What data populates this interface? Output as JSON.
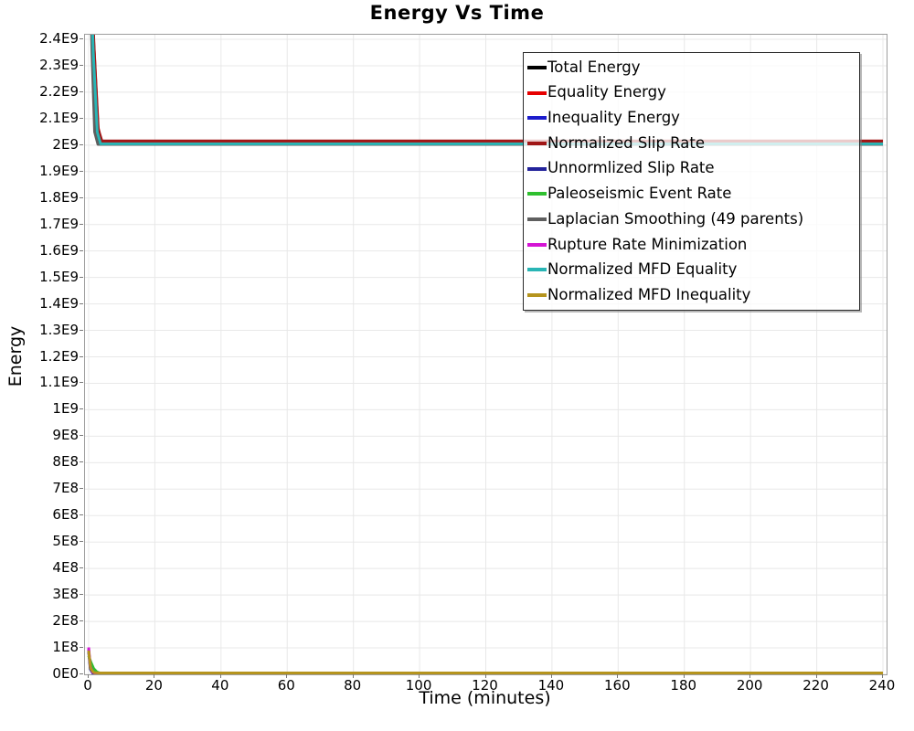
{
  "chart_data": {
    "type": "line",
    "title": "Energy Vs Time",
    "xlabel": "Time (minutes)",
    "ylabel": "Energy",
    "xlim": [
      0,
      240
    ],
    "ylim": [
      0,
      2400000000
    ],
    "grid": true,
    "legend_position": "top-right-inside",
    "xticks": [
      0,
      20,
      40,
      60,
      80,
      100,
      120,
      140,
      160,
      180,
      200,
      220,
      240
    ],
    "yticks": [
      {
        "v": 0,
        "label": "0E0"
      },
      {
        "v": 100000000,
        "label": "1E8"
      },
      {
        "v": 200000000,
        "label": "2E8"
      },
      {
        "v": 300000000,
        "label": "3E8"
      },
      {
        "v": 400000000,
        "label": "4E8"
      },
      {
        "v": 500000000,
        "label": "5E8"
      },
      {
        "v": 600000000,
        "label": "6E8"
      },
      {
        "v": 700000000,
        "label": "7E8"
      },
      {
        "v": 800000000,
        "label": "8E8"
      },
      {
        "v": 900000000,
        "label": "9E8"
      },
      {
        "v": 1000000000,
        "label": "1E9"
      },
      {
        "v": 1100000000,
        "label": "1.1E9"
      },
      {
        "v": 1200000000,
        "label": "1.2E9"
      },
      {
        "v": 1300000000,
        "label": "1.3E9"
      },
      {
        "v": 1400000000,
        "label": "1.4E9"
      },
      {
        "v": 1500000000,
        "label": "1.5E9"
      },
      {
        "v": 1600000000,
        "label": "1.6E9"
      },
      {
        "v": 1700000000,
        "label": "1.7E9"
      },
      {
        "v": 1800000000,
        "label": "1.8E9"
      },
      {
        "v": 1900000000,
        "label": "1.9E9"
      },
      {
        "v": 2000000000,
        "label": "2E9"
      },
      {
        "v": 2100000000,
        "label": "2.1E9"
      },
      {
        "v": 2200000000,
        "label": "2.2E9"
      },
      {
        "v": 2300000000,
        "label": "2.3E9"
      },
      {
        "v": 2400000000,
        "label": "2.4E9"
      }
    ],
    "series": [
      {
        "name": "Total Energy",
        "color": "#000000",
        "points": [
          [
            0,
            3000000000
          ],
          [
            1.2,
            2350000000
          ],
          [
            2.2,
            2060000000
          ],
          [
            3.2,
            2010000000
          ],
          [
            240,
            2010000000
          ]
        ]
      },
      {
        "name": "Equality Energy",
        "color": "#e60000",
        "points": [
          [
            0,
            3000000000
          ],
          [
            1.5,
            2400000000
          ],
          [
            2.8,
            2070000000
          ],
          [
            3.8,
            2013000000
          ],
          [
            240,
            2013000000
          ]
        ]
      },
      {
        "name": "Inequality Energy",
        "color": "#1c1ccc",
        "points": [
          [
            0,
            95000000
          ],
          [
            0.5,
            25000000
          ],
          [
            1.2,
            6000000
          ],
          [
            2,
            3000000
          ],
          [
            240,
            2500000
          ]
        ]
      },
      {
        "name": "Normalized Slip Rate",
        "color": "#a01616",
        "points": [
          [
            0,
            2950000000
          ],
          [
            1.6,
            2380000000
          ],
          [
            2.9,
            2060000000
          ],
          [
            4,
            2016000000
          ],
          [
            240,
            2016000000
          ]
        ]
      },
      {
        "name": "Unnormlized Slip Rate",
        "color": "#23239b",
        "points": [
          [
            0,
            85000000
          ],
          [
            0.5,
            20000000
          ],
          [
            1.2,
            5000000
          ],
          [
            2,
            2500000
          ],
          [
            240,
            2000000
          ]
        ]
      },
      {
        "name": "Paleoseismic Event Rate",
        "color": "#2ebf2e",
        "points": [
          [
            0,
            70000000
          ],
          [
            0.7,
            45000000
          ],
          [
            1.5,
            22000000
          ],
          [
            2.5,
            9000000
          ],
          [
            3.5,
            4500000
          ],
          [
            5,
            2800000
          ],
          [
            240,
            2800000
          ]
        ]
      },
      {
        "name": "Laplacian Smoothing (49 parents)",
        "color": "#5f5f5f",
        "points": [
          [
            0,
            2900000000
          ],
          [
            1,
            2350000000
          ],
          [
            1.8,
            2050000000
          ],
          [
            2.8,
            2003000000
          ],
          [
            240,
            2003000000
          ]
        ]
      },
      {
        "name": "Rupture Rate Minimization",
        "color": "#d414d4",
        "points": [
          [
            0,
            102000000
          ],
          [
            0.5,
            30000000
          ],
          [
            1.2,
            8000000
          ],
          [
            2,
            4000000
          ],
          [
            240,
            3500000
          ]
        ]
      },
      {
        "name": "Normalized MFD Equality",
        "color": "#29b5b5",
        "points": [
          [
            0,
            2900000000
          ],
          [
            1.4,
            2350000000
          ],
          [
            2.6,
            2050000000
          ],
          [
            3.6,
            2005000000
          ],
          [
            240,
            2005000000
          ]
        ]
      },
      {
        "name": "Normalized MFD Inequality",
        "color": "#b5941e",
        "points": [
          [
            0,
            90000000
          ],
          [
            0.6,
            22000000
          ],
          [
            1.5,
            7000000
          ],
          [
            3,
            5000000
          ],
          [
            240,
            5000000
          ]
        ]
      }
    ]
  },
  "style": {
    "grid_color": "#e8e8e8",
    "plot_border_color": "#9e9e9e",
    "tick_color": "#777777",
    "line_width": 3,
    "legend_background": "rgba(255,255,255,0.78)"
  }
}
